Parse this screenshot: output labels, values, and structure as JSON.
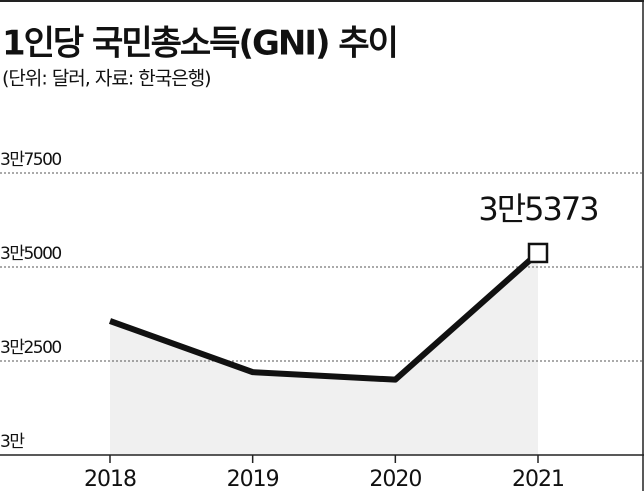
{
  "chart_data": {
    "type": "line",
    "title": "1인당 국민총소득(GNI) 추이",
    "subtitle": "(단위: 달러, 자료: 한국은행)",
    "categories": [
      "2018",
      "2019",
      "2020",
      "2021"
    ],
    "values": [
      33564,
      32204,
      32004,
      35373
    ],
    "value_labels": [
      null,
      null,
      null,
      "3만5373"
    ],
    "color": "#111111",
    "area_color": "#f0f0f0",
    "ylim": [
      30000,
      37500
    ],
    "yticks": [
      {
        "value": 30000,
        "label": "3만"
      },
      {
        "value": 32500,
        "label": "3만2500"
      },
      {
        "value": 35000,
        "label": "3만5000"
      },
      {
        "value": 37500,
        "label": "3만7500"
      }
    ],
    "grid": true
  }
}
